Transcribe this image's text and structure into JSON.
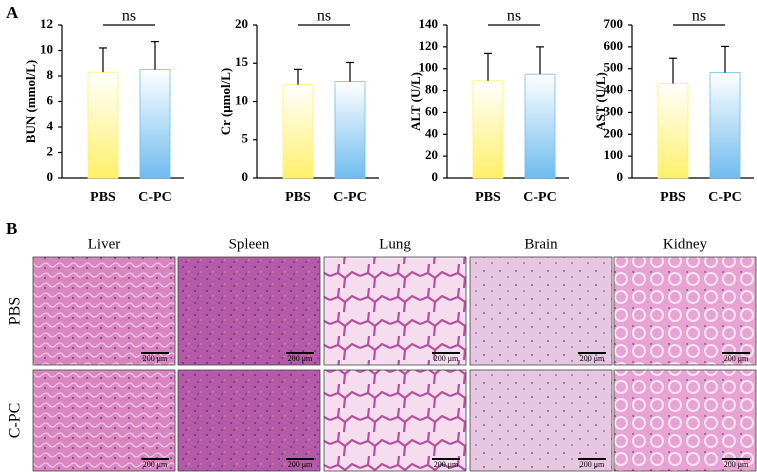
{
  "panel_labels": [
    "A",
    "B"
  ],
  "chart_data": [
    {
      "type": "bar",
      "ylabel": "BUN (mmol/L)",
      "categories": [
        "PBS",
        "C-PC"
      ],
      "values": [
        8.3,
        8.5
      ],
      "errors": [
        1.9,
        2.2
      ],
      "colors": [
        "#fff06a",
        "#6fbcef"
      ],
      "ylim": [
        0,
        12
      ],
      "yticks": [
        0,
        2,
        4,
        6,
        8,
        10,
        12
      ],
      "annotation": "ns"
    },
    {
      "type": "bar",
      "ylabel": "Cr (μmol/L)",
      "categories": [
        "PBS",
        "C-PC"
      ],
      "values": [
        12.2,
        12.6
      ],
      "errors": [
        2.0,
        2.5
      ],
      "colors": [
        "#fff06a",
        "#6fbcef"
      ],
      "ylim": [
        0,
        20
      ],
      "yticks": [
        0,
        5,
        10,
        15,
        20
      ],
      "annotation": "ns"
    },
    {
      "type": "bar",
      "ylabel": "ALT (U/L)",
      "categories": [
        "PBS",
        "C-PC"
      ],
      "values": [
        89,
        95
      ],
      "errors": [
        25,
        25
      ],
      "colors": [
        "#fff06a",
        "#6fbcef"
      ],
      "ylim": [
        0,
        140
      ],
      "yticks": [
        0,
        20,
        40,
        60,
        80,
        100,
        120,
        140
      ],
      "annotation": "ns"
    },
    {
      "type": "bar",
      "ylabel": "AST (U/L)",
      "categories": [
        "PBS",
        "C-PC"
      ],
      "values": [
        432,
        482
      ],
      "errors": [
        116,
        120
      ],
      "colors": [
        "#fff06a",
        "#6fbcef"
      ],
      "ylim": [
        0,
        700
      ],
      "yticks": [
        0,
        100,
        200,
        300,
        400,
        500,
        600,
        700
      ],
      "annotation": "ns"
    }
  ],
  "histology": {
    "columns": [
      "Liver",
      "Spleen",
      "Lung",
      "Brain",
      "Kidney"
    ],
    "rows": [
      "PBS",
      "C-PC"
    ],
    "scale_bar": "200 μm"
  }
}
